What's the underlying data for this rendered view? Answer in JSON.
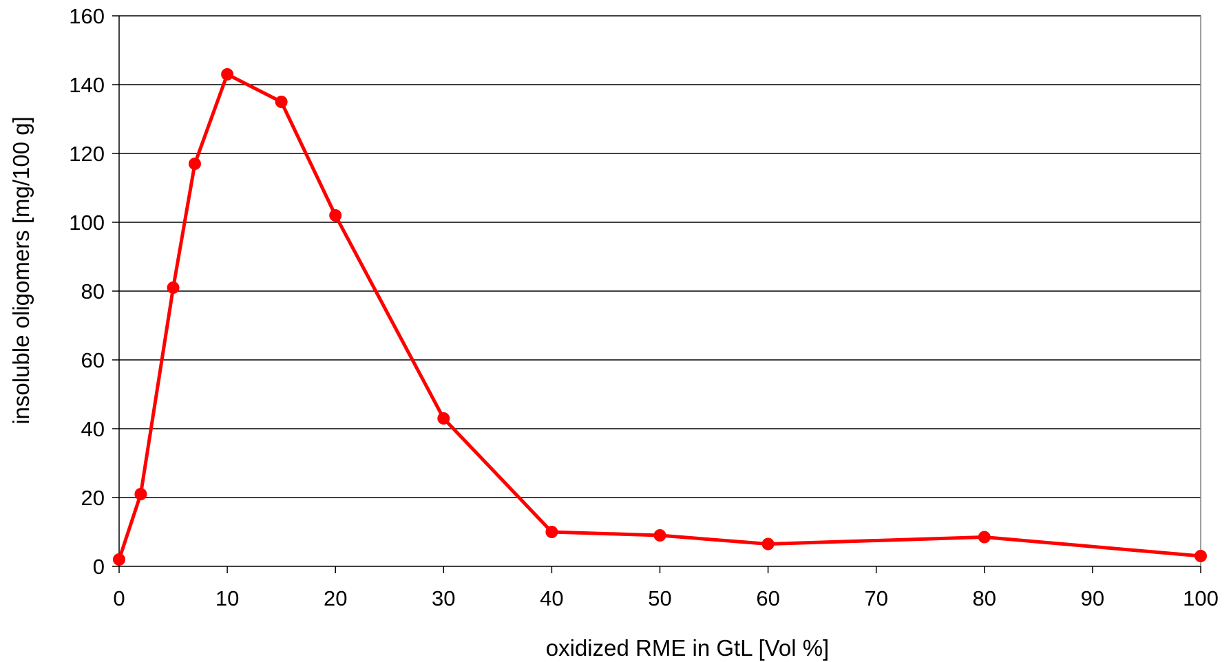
{
  "chart_data": {
    "type": "line",
    "title": "",
    "xlabel": "oxidized RME in GtL [Vol %]",
    "ylabel": "insoluble oligomers [mg/100 g]",
    "xlim": [
      0,
      100
    ],
    "ylim": [
      0,
      160
    ],
    "xticks": [
      0,
      10,
      20,
      30,
      40,
      50,
      60,
      70,
      80,
      90,
      100
    ],
    "yticks": [
      0,
      20,
      40,
      60,
      80,
      100,
      120,
      140,
      160
    ],
    "grid": "horizontal",
    "legend": "none",
    "series": [
      {
        "color": "#ff0000",
        "x": [
          0,
          2,
          5,
          7,
          10,
          15,
          20,
          30,
          40,
          50,
          60,
          80,
          100
        ],
        "y": [
          2,
          21,
          81,
          117,
          143,
          135,
          102,
          43,
          10,
          9,
          6.5,
          8.5,
          3
        ]
      }
    ]
  }
}
